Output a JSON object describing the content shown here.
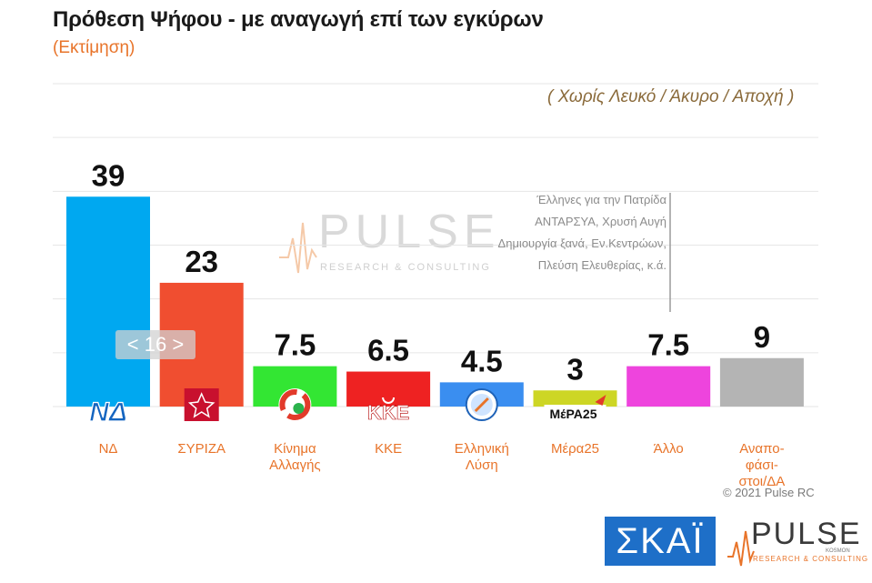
{
  "header": {
    "title": "Πρόθεση Ψήφου - με αναγωγή επί των εγκύρων",
    "subtitle": "(Εκτίμηση)",
    "note": "( Χωρίς Λευκό / Άκυρο / Αποχή )"
  },
  "watermark": {
    "name": "PULSE",
    "tagline": "RESEARCH & CONSULTING"
  },
  "pager": {
    "label": "< 16 >"
  },
  "other_note": {
    "lines": [
      "Έλληνες για την Πατρίδα",
      "ΑΝΤΑΡΣΥΑ, Χρυσή Αυγή",
      "Δημιουργία ξανά, Εν.Κεντρώων,",
      "Πλεύση  Ελευθερίας, κ.ά."
    ]
  },
  "logos": {
    "nd": "ΝΔ",
    "kke": "ΚΚΕ",
    "mera25": "ΜέΡΑ25"
  },
  "footer": {
    "copyright": "© 2021 Pulse RC",
    "skai": "ΣΚΑΪ",
    "pulse_name": "PULSE",
    "pulse_tagline": "RESEARCH & CONSULTING",
    "pulse_kosmos": "KOSMON"
  },
  "colors": {
    "nd": "#00a8f0",
    "syriza": "#f04e30",
    "kinima": "#33e633",
    "kke": "#ee2222",
    "elliniki": "#3a8ef0",
    "mera25": "#cdd625",
    "allo": "#ee44dd",
    "anapofasistoi": "#b4b4b4",
    "grid": "#e6e6e6",
    "value": "#111111",
    "category": "#e8742a"
  },
  "chart_data": {
    "type": "bar",
    "title": "Πρόθεση Ψήφου - με αναγωγή επί των εγκύρων",
    "subtitle": "(Εκτίμηση)",
    "categories": [
      "ΝΔ",
      "ΣΥΡΙΖΑ",
      "Κίνημα Αλλαγής",
      "ΚΚΕ",
      "Ελληνική Λύση",
      "Μέρα25",
      "Άλλο",
      "Αναπο-φάσι-στοι/ΔΑ"
    ],
    "category_lines": [
      [
        "ΝΔ"
      ],
      [
        "ΣΥΡΙΖΑ"
      ],
      [
        "Κίνημα",
        "Αλλαγής"
      ],
      [
        "ΚΚΕ"
      ],
      [
        "Ελληνική",
        "Λύση"
      ],
      [
        "Μέρα25"
      ],
      [
        "Άλλο"
      ],
      [
        "Αναπο-",
        "φάσι-",
        "στοι/ΔΑ"
      ]
    ],
    "values": [
      39,
      23,
      7.5,
      6.5,
      4.5,
      3,
      7.5,
      9
    ],
    "value_labels": [
      "39",
      "23",
      "7.5",
      "6.5",
      "4.5",
      "3",
      "7.5",
      "9"
    ],
    "colors": [
      "#00a8f0",
      "#f04e30",
      "#33e633",
      "#ee2222",
      "#3a8ef0",
      "#cdd625",
      "#ee44dd",
      "#b4b4b4"
    ],
    "ylim": [
      0,
      60
    ],
    "grid": true,
    "xlabel": "",
    "ylabel": ""
  }
}
